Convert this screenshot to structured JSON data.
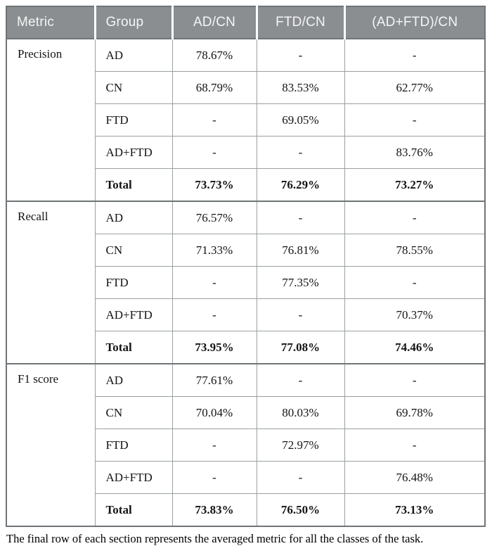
{
  "table": {
    "columns": [
      "Metric",
      "Group",
      "AD/CN",
      "FTD/CN",
      "(AD+FTD)/CN"
    ],
    "sections": [
      {
        "metric": "Precision",
        "rows": [
          {
            "group": "AD",
            "values": [
              "78.67%",
              "-",
              "-"
            ]
          },
          {
            "group": "CN",
            "values": [
              "68.79%",
              "83.53%",
              "62.77%"
            ]
          },
          {
            "group": "FTD",
            "values": [
              "-",
              "69.05%",
              "-"
            ]
          },
          {
            "group": "AD+FTD",
            "values": [
              "-",
              "-",
              "83.76%"
            ]
          },
          {
            "group": "Total",
            "values": [
              "73.73%",
              "76.29%",
              "73.27%"
            ]
          }
        ]
      },
      {
        "metric": "Recall",
        "rows": [
          {
            "group": "AD",
            "values": [
              "76.57%",
              "-",
              "-"
            ]
          },
          {
            "group": "CN",
            "values": [
              "71.33%",
              "76.81%",
              "78.55%"
            ]
          },
          {
            "group": "FTD",
            "values": [
              "-",
              "77.35%",
              "-"
            ]
          },
          {
            "group": "AD+FTD",
            "values": [
              "-",
              "-",
              "70.37%"
            ]
          },
          {
            "group": "Total",
            "values": [
              "73.95%",
              "77.08%",
              "74.46%"
            ]
          }
        ]
      },
      {
        "metric": "F1 score",
        "rows": [
          {
            "group": "AD",
            "values": [
              "77.61%",
              "-",
              "-"
            ]
          },
          {
            "group": "CN",
            "values": [
              "70.04%",
              "80.03%",
              "69.78%"
            ]
          },
          {
            "group": "FTD",
            "values": [
              "-",
              "72.97%",
              "-"
            ]
          },
          {
            "group": "AD+FTD",
            "values": [
              "-",
              "-",
              "76.48%"
            ]
          },
          {
            "group": "Total",
            "values": [
              "73.83%",
              "76.50%",
              "73.13%"
            ]
          }
        ]
      }
    ],
    "footnote": "The final row of each section represents the averaged metric for all the classes of the task."
  },
  "colors": {
    "header_bg": "#8a8e91",
    "header_text": "#f5f5f5",
    "border_outer": "#6f7477",
    "border_inner": "#9aa0a2"
  }
}
